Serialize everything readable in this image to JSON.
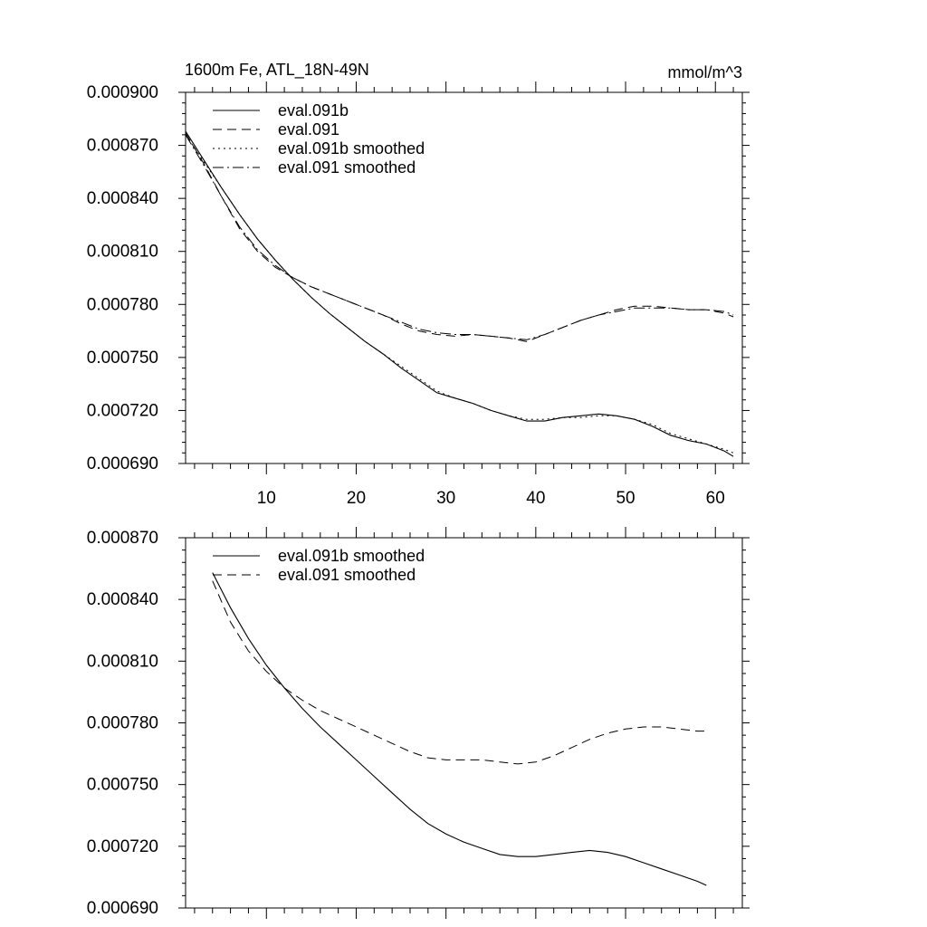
{
  "figure": {
    "title_left": "1600m Fe, ATL_18N-49N",
    "title_right": "mmol/m^3"
  },
  "chart_data": [
    {
      "type": "line",
      "title": "1600m Fe, ATL_18N-49N",
      "units": "mmol/m^3",
      "xlim": [
        1,
        63
      ],
      "ylim": [
        0.00069,
        0.0009
      ],
      "yticks": [
        0.00069,
        0.00072,
        0.00075,
        0.00078,
        0.00081,
        0.00084,
        0.00087,
        0.0009
      ],
      "ytick_labels": [
        "0.000690",
        "0.000720",
        "0.000750",
        "0.000780",
        "0.000810",
        "0.000840",
        "0.000870",
        "0.000900"
      ],
      "xticks": [
        10,
        20,
        30,
        40,
        50,
        60
      ],
      "xtick_labels": [
        "10",
        "20",
        "30",
        "40",
        "50",
        "60"
      ],
      "legend_position": "top-left",
      "series": [
        {
          "name": "eval.091b",
          "style": "solid",
          "x": [
            1,
            3,
            5,
            7,
            9,
            11,
            13,
            15,
            17,
            19,
            21,
            23,
            25,
            27,
            29,
            31,
            33,
            35,
            37,
            39,
            41,
            43,
            45,
            47,
            49,
            51,
            53,
            55,
            57,
            59,
            61,
            62
          ],
          "values": [
            0.000878,
            0.000862,
            0.000846,
            0.000831,
            0.000817,
            0.000805,
            0.000794,
            0.000784,
            0.000775,
            0.000767,
            0.000759,
            0.000752,
            0.000744,
            0.000737,
            0.00073,
            0.000727,
            0.000724,
            0.00072,
            0.000717,
            0.000714,
            0.000714,
            0.000716,
            0.000717,
            0.000718,
            0.000717,
            0.000715,
            0.000711,
            0.000706,
            0.000703,
            0.000701,
            0.000697,
            0.000694
          ]
        },
        {
          "name": "eval.091",
          "style": "dashed",
          "x": [
            1,
            3,
            5,
            7,
            9,
            11,
            13,
            15,
            17,
            19,
            21,
            23,
            25,
            27,
            29,
            31,
            33,
            35,
            37,
            39,
            41,
            43,
            45,
            47,
            49,
            51,
            53,
            55,
            57,
            59,
            61,
            62
          ],
          "values": [
            0.000877,
            0.00086,
            0.000841,
            0.000823,
            0.00081,
            0.000801,
            0.000795,
            0.00079,
            0.000786,
            0.000782,
            0.000778,
            0.000774,
            0.000769,
            0.000765,
            0.000763,
            0.000762,
            0.000763,
            0.000762,
            0.000761,
            0.000759,
            0.000763,
            0.000767,
            0.000771,
            0.000774,
            0.000777,
            0.000779,
            0.000779,
            0.000778,
            0.000777,
            0.000777,
            0.000775,
            0.000773
          ]
        },
        {
          "name": "eval.091b smoothed",
          "style": "dotted",
          "x": [
            1,
            3,
            5,
            7,
            9,
            11,
            13,
            15,
            17,
            19,
            21,
            23,
            25,
            27,
            29,
            31,
            33,
            35,
            37,
            39,
            41,
            43,
            45,
            47,
            49,
            51,
            53,
            55,
            57,
            59,
            61,
            62
          ],
          "values": [
            0.000876,
            0.000861,
            0.000846,
            0.000831,
            0.000817,
            0.000805,
            0.000794,
            0.000784,
            0.000775,
            0.000767,
            0.000759,
            0.000752,
            0.000745,
            0.000738,
            0.000731,
            0.000727,
            0.000724,
            0.00072,
            0.000717,
            0.000715,
            0.000715,
            0.000716,
            0.000716,
            0.000717,
            0.000717,
            0.000715,
            0.000712,
            0.000707,
            0.000704,
            0.000701,
            0.000698,
            0.000696
          ]
        },
        {
          "name": "eval.091 smoothed",
          "style": "dashdot",
          "x": [
            1,
            3,
            5,
            7,
            9,
            11,
            13,
            15,
            17,
            19,
            21,
            23,
            25,
            27,
            29,
            31,
            33,
            35,
            37,
            39,
            41,
            43,
            45,
            47,
            49,
            51,
            53,
            55,
            57,
            59,
            61,
            62
          ],
          "values": [
            0.000876,
            0.000859,
            0.000841,
            0.000824,
            0.000811,
            0.000802,
            0.000795,
            0.00079,
            0.000786,
            0.000782,
            0.000778,
            0.000774,
            0.00077,
            0.000766,
            0.000764,
            0.000763,
            0.000763,
            0.000762,
            0.000761,
            0.00076,
            0.000763,
            0.000767,
            0.000771,
            0.000774,
            0.000776,
            0.000778,
            0.000778,
            0.000778,
            0.000777,
            0.000777,
            0.000776,
            0.000774
          ]
        }
      ]
    },
    {
      "type": "line",
      "xlim": [
        1,
        63
      ],
      "ylim": [
        0.00069,
        0.00087
      ],
      "yticks": [
        0.00069,
        0.00072,
        0.00075,
        0.00078,
        0.00081,
        0.00084,
        0.00087
      ],
      "ytick_labels": [
        "0.000690",
        "0.000720",
        "0.000750",
        "0.000780",
        "0.000810",
        "0.000840",
        "0.000870"
      ],
      "xticks": [
        10,
        20,
        30,
        40,
        50,
        60
      ],
      "xtick_labels": [],
      "legend_position": "top-left",
      "series": [
        {
          "name": "eval.091b smoothed",
          "style": "solid",
          "x": [
            4,
            6,
            8,
            10,
            12,
            14,
            16,
            18,
            20,
            22,
            24,
            26,
            28,
            30,
            32,
            34,
            36,
            38,
            40,
            42,
            44,
            46,
            48,
            50,
            52,
            54,
            56,
            58,
            59
          ],
          "values": [
            0.000853,
            0.000836,
            0.000821,
            0.000808,
            0.000797,
            0.000787,
            0.000778,
            0.00077,
            0.000762,
            0.000754,
            0.000746,
            0.000738,
            0.000731,
            0.000726,
            0.000722,
            0.000719,
            0.000716,
            0.000715,
            0.000715,
            0.000716,
            0.000717,
            0.000718,
            0.000717,
            0.000715,
            0.000712,
            0.000709,
            0.000706,
            0.000703,
            0.000701
          ]
        },
        {
          "name": "eval.091 smoothed",
          "style": "dashed",
          "x": [
            4,
            6,
            8,
            10,
            12,
            14,
            16,
            18,
            20,
            22,
            24,
            26,
            28,
            30,
            32,
            34,
            36,
            38,
            40,
            42,
            44,
            46,
            48,
            50,
            52,
            54,
            56,
            58,
            59
          ],
          "values": [
            0.000849,
            0.000829,
            0.000815,
            0.000805,
            0.000797,
            0.000791,
            0.000786,
            0.000782,
            0.000778,
            0.000774,
            0.00077,
            0.000766,
            0.000763,
            0.000762,
            0.000762,
            0.000762,
            0.000761,
            0.00076,
            0.000761,
            0.000764,
            0.000768,
            0.000772,
            0.000775,
            0.000777,
            0.000778,
            0.000778,
            0.000777,
            0.000776,
            0.000776
          ]
        }
      ]
    }
  ]
}
